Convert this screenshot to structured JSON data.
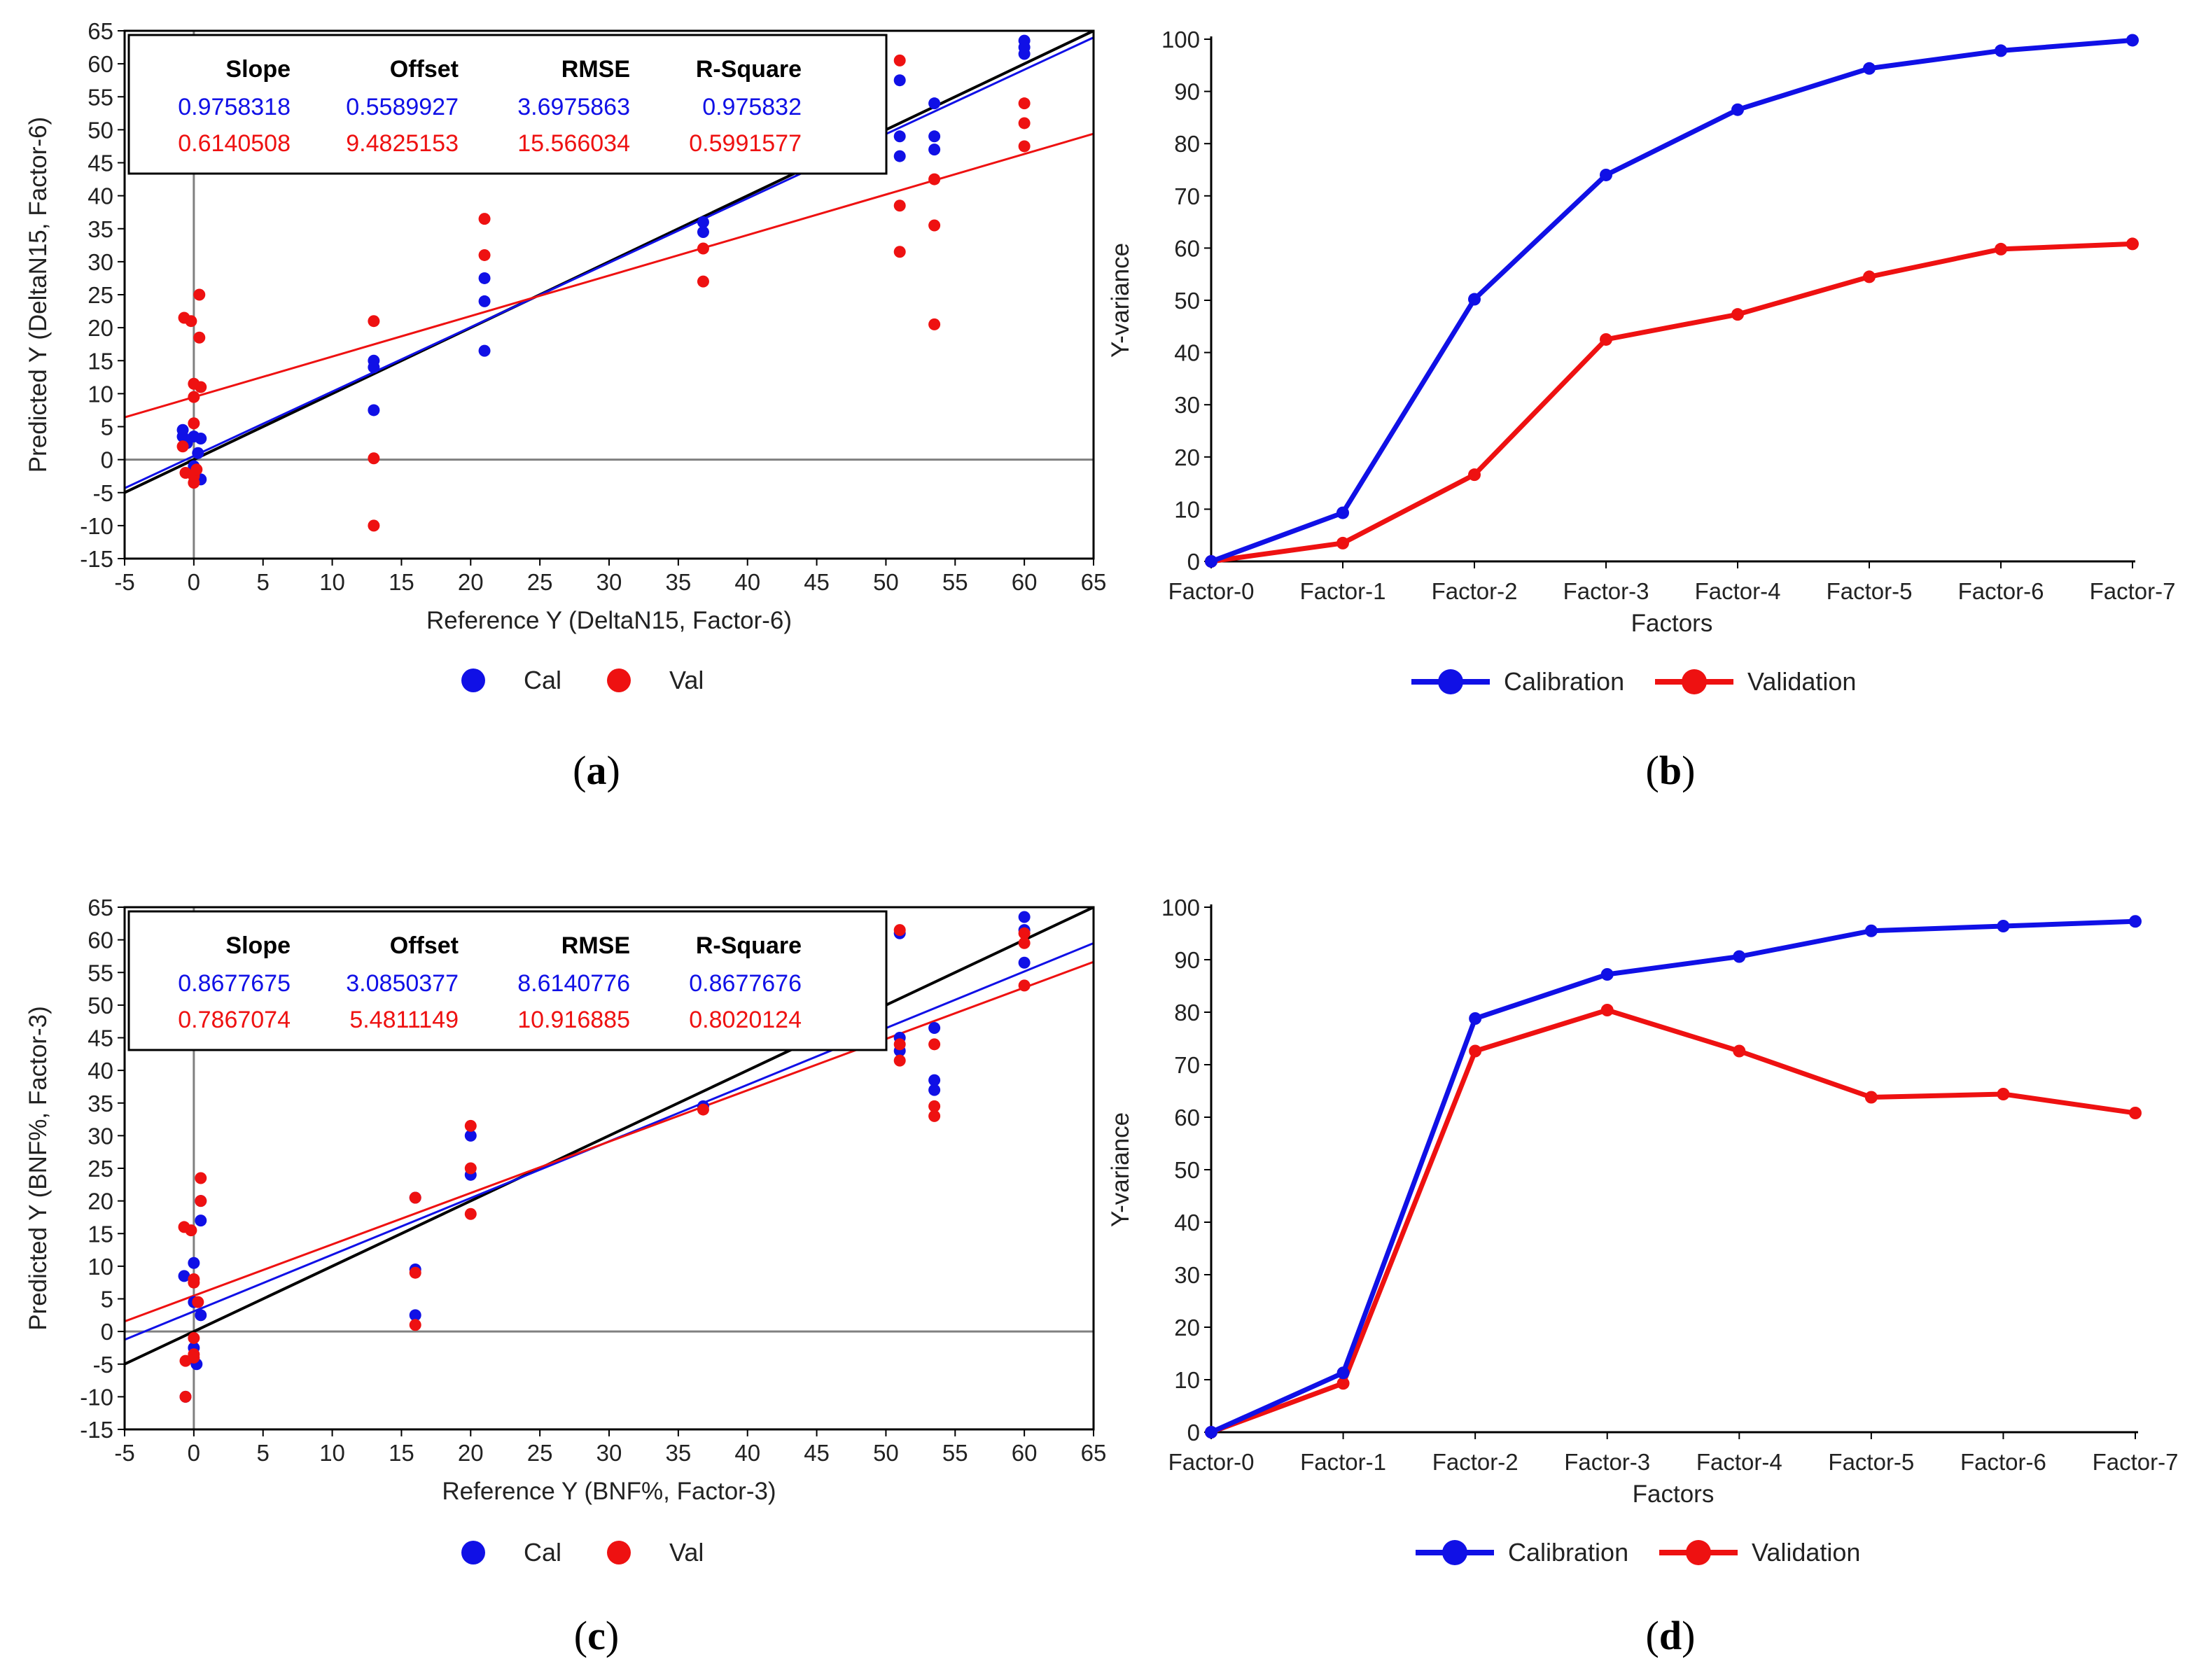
{
  "colors": {
    "cal": "#1010e6",
    "val": "#ee1111",
    "ideal": "#000000",
    "axis": "#808080"
  },
  "chart_data": [
    {
      "id": "a",
      "panel_label": "a",
      "type": "scatter",
      "xlabel": "Reference Y (DeltaN15, Factor-6)",
      "ylabel": "Predicted Y (DeltaN15, Factor-6)",
      "xlim": [
        -5,
        65
      ],
      "ylim": [
        -15,
        65
      ],
      "xticks": [
        -5,
        0,
        5,
        10,
        15,
        20,
        25,
        30,
        35,
        40,
        45,
        50,
        55,
        60,
        65
      ],
      "yticks": [
        -15,
        -10,
        -5,
        0,
        5,
        10,
        15,
        20,
        25,
        30,
        35,
        40,
        45,
        50,
        55,
        60,
        65
      ],
      "legend": [
        "Cal",
        "Val"
      ],
      "stats": {
        "headers": [
          "Slope",
          "Offset",
          "RMSE",
          "R-Square"
        ],
        "cal": [
          "0.9758318",
          "0.5589927",
          "3.6975863",
          "0.975832"
        ],
        "val": [
          "0.6140508",
          "9.4825153",
          "15.566034",
          "0.5991577"
        ]
      },
      "fits": {
        "cal": {
          "slope": 0.9758318,
          "offset": 0.5589927
        },
        "val": {
          "slope": 0.6140508,
          "offset": 9.4825153
        },
        "ideal": {
          "slope": 1,
          "offset": 0
        }
      },
      "series": [
        {
          "name": "Cal",
          "points": [
            [
              -0.8,
              4.5
            ],
            [
              -0.8,
              3.5
            ],
            [
              -0.5,
              2.5
            ],
            [
              0,
              -1
            ],
            [
              0,
              3.5
            ],
            [
              0.3,
              1
            ],
            [
              0.5,
              -3
            ],
            [
              0.5,
              3.2
            ],
            [
              13,
              15
            ],
            [
              13,
              14
            ],
            [
              13,
              7.5
            ],
            [
              21,
              27.5
            ],
            [
              21,
              24
            ],
            [
              21,
              16.5
            ],
            [
              36.8,
              36
            ],
            [
              36.8,
              34.5
            ],
            [
              51,
              57.5
            ],
            [
              51,
              49
            ],
            [
              51,
              46
            ],
            [
              53.5,
              54
            ],
            [
              53.5,
              49
            ],
            [
              53.5,
              47
            ],
            [
              60,
              63.5
            ],
            [
              60,
              62.5
            ],
            [
              60,
              61.5
            ]
          ]
        },
        {
          "name": "Val",
          "points": [
            [
              -0.7,
              21.5
            ],
            [
              -0.8,
              2
            ],
            [
              -0.6,
              -2
            ],
            [
              -0.2,
              21
            ],
            [
              0,
              11.5
            ],
            [
              0,
              9.5
            ],
            [
              0,
              5.5
            ],
            [
              0,
              -2.5
            ],
            [
              0,
              -3.5
            ],
            [
              0.2,
              -1.5
            ],
            [
              0.4,
              25
            ],
            [
              0.4,
              18.5
            ],
            [
              0.5,
              11
            ],
            [
              13,
              21
            ],
            [
              13,
              0.2
            ],
            [
              13,
              -10
            ],
            [
              21,
              36.5
            ],
            [
              21,
              31
            ],
            [
              36.8,
              32
            ],
            [
              36.8,
              27
            ],
            [
              51,
              60.5
            ],
            [
              51,
              38.5
            ],
            [
              51,
              31.5
            ],
            [
              53.5,
              42.5
            ],
            [
              53.5,
              35.5
            ],
            [
              53.5,
              20.5
            ],
            [
              60,
              54
            ],
            [
              60,
              51
            ],
            [
              60,
              47.5
            ]
          ]
        }
      ]
    },
    {
      "id": "b",
      "panel_label": "b",
      "type": "line",
      "xlabel": "Factors",
      "ylabel": "Y-variance",
      "categories": [
        "Factor-0",
        "Factor-1",
        "Factor-2",
        "Factor-3",
        "Factor-4",
        "Factor-5",
        "Factor-6",
        "Factor-7"
      ],
      "ylim": [
        0,
        100
      ],
      "yticks": [
        0,
        10,
        20,
        30,
        40,
        50,
        60,
        70,
        80,
        90,
        100
      ],
      "series": [
        {
          "name": "Calibration",
          "values": [
            0,
            9.3,
            50.2,
            74,
            86.5,
            94.4,
            97.8,
            99.8
          ]
        },
        {
          "name": "Validation",
          "values": [
            0,
            3.5,
            16.6,
            42.5,
            47.3,
            54.5,
            59.8,
            60.8
          ]
        }
      ]
    },
    {
      "id": "c",
      "panel_label": "c",
      "type": "scatter",
      "xlabel": "Reference Y (BNF%, Factor-3)",
      "ylabel": "Predicted Y (BNF%, Factor-3)",
      "xlim": [
        -5,
        65
      ],
      "ylim": [
        -15,
        65
      ],
      "xticks": [
        -5,
        0,
        5,
        10,
        15,
        20,
        25,
        30,
        35,
        40,
        45,
        50,
        55,
        60,
        65
      ],
      "yticks": [
        -15,
        -10,
        -5,
        0,
        5,
        10,
        15,
        20,
        25,
        30,
        35,
        40,
        45,
        50,
        55,
        60,
        65
      ],
      "legend": [
        "Cal",
        "Val"
      ],
      "stats": {
        "headers": [
          "Slope",
          "Offset",
          "RMSE",
          "R-Square"
        ],
        "cal": [
          "0.8677675",
          "3.0850377",
          "8.6140776",
          "0.8677676"
        ],
        "val": [
          "0.7867074",
          "5.4811149",
          "10.916885",
          "0.8020124"
        ]
      },
      "fits": {
        "cal": {
          "slope": 0.8677675,
          "offset": 3.0850377
        },
        "val": {
          "slope": 0.7867074,
          "offset": 5.4811149
        },
        "ideal": {
          "slope": 1,
          "offset": 0
        }
      },
      "series": [
        {
          "name": "Cal",
          "points": [
            [
              -0.7,
              8.5
            ],
            [
              -0.6,
              -10
            ],
            [
              0,
              10.5
            ],
            [
              0,
              4.5
            ],
            [
              0,
              -2.5
            ],
            [
              0.2,
              -5
            ],
            [
              0.5,
              20
            ],
            [
              0.5,
              17
            ],
            [
              0.5,
              2.5
            ],
            [
              16,
              20.5
            ],
            [
              16,
              9.5
            ],
            [
              16,
              2.5
            ],
            [
              20,
              30
            ],
            [
              20,
              24
            ],
            [
              36.8,
              34.5
            ],
            [
              51,
              61
            ],
            [
              51,
              45
            ],
            [
              51,
              43
            ],
            [
              53.5,
              46.5
            ],
            [
              53.5,
              38.5
            ],
            [
              53.5,
              37
            ],
            [
              60,
              63.5
            ],
            [
              60,
              61.5
            ],
            [
              60,
              56.5
            ]
          ]
        },
        {
          "name": "Val",
          "points": [
            [
              -0.7,
              16
            ],
            [
              -0.6,
              -4.5
            ],
            [
              -0.6,
              -10
            ],
            [
              -0.2,
              15.5
            ],
            [
              0,
              8
            ],
            [
              0,
              7.5
            ],
            [
              0,
              -1
            ],
            [
              0,
              -3.5
            ],
            [
              0,
              -4
            ],
            [
              0.3,
              4.5
            ],
            [
              0.5,
              23.5
            ],
            [
              0.5,
              20
            ],
            [
              16,
              20.5
            ],
            [
              16,
              9
            ],
            [
              16,
              1
            ],
            [
              20,
              31.5
            ],
            [
              20,
              25
            ],
            [
              20,
              18
            ],
            [
              36.8,
              34
            ],
            [
              51,
              61.5
            ],
            [
              51,
              44
            ],
            [
              51,
              41.5
            ],
            [
              53.5,
              44
            ],
            [
              53.5,
              34.5
            ],
            [
              53.5,
              33
            ],
            [
              60,
              61
            ],
            [
              60,
              59.5
            ],
            [
              60,
              53
            ]
          ]
        }
      ]
    },
    {
      "id": "d",
      "panel_label": "d",
      "type": "line",
      "xlabel": "Factors",
      "ylabel": "Y-variance",
      "categories": [
        "Factor-0",
        "Factor-1",
        "Factor-2",
        "Factor-3",
        "Factor-4",
        "Factor-5",
        "Factor-6",
        "Factor-7"
      ],
      "ylim": [
        0,
        100
      ],
      "yticks": [
        0,
        10,
        20,
        30,
        40,
        50,
        60,
        70,
        80,
        90,
        100
      ],
      "series": [
        {
          "name": "Calibration",
          "values": [
            0,
            11.3,
            78.8,
            87.2,
            90.6,
            95.5,
            96.4,
            97.3
          ]
        },
        {
          "name": "Validation",
          "values": [
            0,
            9.3,
            72.6,
            80.4,
            72.6,
            63.8,
            64.4,
            60.8
          ]
        }
      ]
    }
  ]
}
